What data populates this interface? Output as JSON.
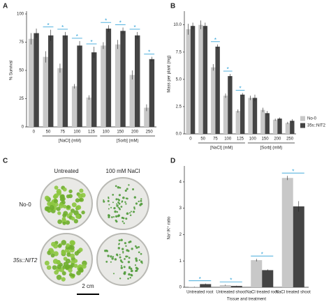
{
  "chart_data": [
    {
      "panel": "A",
      "type": "bar",
      "ylabel": "% Survival",
      "categories": [
        "0",
        "50",
        "75",
        "100",
        "125",
        "100",
        "150",
        "200",
        "250"
      ],
      "group_labels": [
        "[NaCl] (mM)",
        "[Sorb] (mM)"
      ],
      "ylim": [
        0,
        100
      ],
      "yticks": [
        0,
        25,
        50,
        75,
        100
      ],
      "series": [
        {
          "color": "#c8c8c8",
          "values": [
            78,
            62,
            52,
            36,
            26,
            72,
            73,
            46,
            17
          ],
          "errors": [
            5,
            5,
            4,
            2,
            2,
            3,
            4,
            4,
            3
          ]
        },
        {
          "color": "#444444",
          "values": [
            83,
            81,
            81,
            72,
            66,
            87,
            85,
            81,
            60
          ],
          "errors": [
            4,
            5,
            3,
            4,
            5,
            3,
            3,
            3,
            2
          ]
        }
      ],
      "significance": [
        null,
        "*",
        "*",
        "*",
        "*",
        "*",
        "*",
        "*",
        "*"
      ]
    },
    {
      "panel": "B",
      "type": "bar",
      "ylabel": "Mass per plant (mg)",
      "categories": [
        "0",
        "50",
        "75",
        "100",
        "125",
        "100",
        "150",
        "200",
        "250"
      ],
      "group_labels": [
        "[NaCl] (mM)",
        "[Sorb] (mM)"
      ],
      "ylim": [
        0,
        11
      ],
      "yticks": [
        {
          "value": 0,
          "label": "0.0"
        },
        2.5,
        {
          "value": 5,
          "label": "5.0"
        },
        7.5,
        {
          "value": 10,
          "label": "10.0"
        }
      ],
      "legend": "right",
      "series": [
        {
          "name": "No-0",
          "color": "#c8c8c8",
          "values": [
            9.6,
            10.0,
            6.1,
            3.5,
            2.1,
            3.3,
            2.2,
            1.3,
            1.0
          ],
          "errors": [
            0.5,
            0.4,
            0.3,
            0.2,
            0.15,
            0.2,
            0.2,
            0.1,
            0.1
          ]
        },
        {
          "name": "35s::NIT2",
          "color": "#444444",
          "values": [
            9.9,
            9.9,
            8.0,
            5.3,
            3.6,
            3.3,
            1.9,
            1.4,
            1.2
          ],
          "errors": [
            0.3,
            0.3,
            0.2,
            0.2,
            0.15,
            0.3,
            0.2,
            0.1,
            0.15
          ]
        }
      ],
      "significance": [
        null,
        null,
        "*",
        "*",
        "*",
        null,
        null,
        null,
        null
      ]
    },
    {
      "panel": "D",
      "type": "bar",
      "ylabel": "Na⁺/K⁺ ratio",
      "xlabel": "Tissue and treatment",
      "categories": [
        "Untreated root",
        "Untreated shoot",
        "NaCl treated root",
        "NaCl treated shoot"
      ],
      "ylim": [
        0,
        4.5
      ],
      "yticks": [
        0,
        1,
        2,
        3,
        4
      ],
      "series": [
        {
          "color": "#c8c8c8",
          "values": [
            0.02,
            0.08,
            1.03,
            4.15
          ],
          "errors": [
            0.01,
            0.02,
            0.05,
            0.08
          ]
        },
        {
          "color": "#444444",
          "values": [
            0.12,
            0.05,
            0.65,
            3.07
          ],
          "errors": [
            0.02,
            0.01,
            0.03,
            0.2
          ]
        }
      ],
      "significance": [
        "*",
        "*",
        "*",
        "*"
      ]
    }
  ],
  "photo_panel": {
    "panel": "C",
    "columns": [
      "Untreated",
      "100 mM NaCl"
    ],
    "rows": [
      "No-0",
      "35s::NIT2"
    ],
    "scale_bar": "2 cm"
  }
}
